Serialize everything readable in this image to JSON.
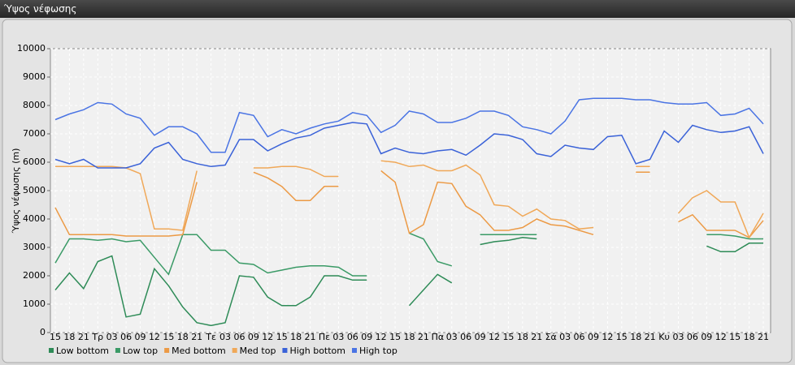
{
  "window_title": "Ύψος νέφωσης",
  "chart_data": {
    "type": "line",
    "y_label": "Ύψος νέφωσης (m)",
    "categories": [
      "15",
      "18",
      "21",
      "Τρ",
      "03",
      "06",
      "09",
      "12",
      "15",
      "18",
      "21",
      "Τε",
      "03",
      "06",
      "09",
      "12",
      "15",
      "18",
      "21",
      "Πε",
      "03",
      "06",
      "09",
      "12",
      "15",
      "18",
      "21",
      "Πα",
      "03",
      "06",
      "09",
      "12",
      "15",
      "18",
      "21",
      "Σά",
      "03",
      "06",
      "09",
      "12",
      "15",
      "18",
      "21",
      "Κυ",
      "03",
      "06",
      "09",
      "12",
      "15",
      "18",
      "21"
    ],
    "ylim": [
      0,
      10000
    ],
    "yticks": [
      0,
      1000,
      2000,
      3000,
      4000,
      5000,
      6000,
      7000,
      8000,
      9000,
      10000
    ],
    "grid": true,
    "series": [
      {
        "name": "Low bottom",
        "color": "#2e8b57",
        "values": [
          1500,
          2100,
          1550,
          2500,
          2700,
          550,
          650,
          2250,
          1650,
          900,
          350,
          250,
          350,
          2000,
          1950,
          1250,
          950,
          950,
          1250,
          2000,
          2000,
          1850,
          1850,
          null,
          null,
          950,
          1500,
          2050,
          1750,
          null,
          3100,
          3200,
          3250,
          3350,
          3300,
          null,
          null,
          null,
          null,
          null,
          null,
          null,
          null,
          null,
          null,
          null,
          3050,
          2850,
          2850,
          3150,
          3150
        ]
      },
      {
        "name": "Low top",
        "color": "#3a9a66",
        "values": [
          2450,
          3300,
          3300,
          3250,
          3300,
          3200,
          3250,
          2650,
          2050,
          3450,
          3450,
          2900,
          2900,
          2450,
          2400,
          2100,
          2200,
          2300,
          2350,
          2350,
          2300,
          2000,
          2000,
          null,
          null,
          3500,
          3300,
          2500,
          2350,
          null,
          3450,
          3450,
          3450,
          3450,
          3450,
          null,
          null,
          null,
          null,
          null,
          null,
          null,
          null,
          null,
          null,
          null,
          3450,
          3450,
          3400,
          3300,
          3300
        ]
      },
      {
        "name": "Med bottom",
        "color": "#ec9a45",
        "values": [
          4400,
          3450,
          3450,
          3450,
          3450,
          3400,
          3400,
          3400,
          3400,
          3450,
          5300,
          null,
          null,
          null,
          5650,
          5450,
          5150,
          4650,
          4650,
          5150,
          5150,
          null,
          null,
          5700,
          5300,
          3500,
          3800,
          5300,
          5250,
          4450,
          4150,
          3600,
          3600,
          3700,
          4000,
          3800,
          3750,
          3600,
          3450,
          null,
          null,
          5650,
          5650,
          null,
          3900,
          4150,
          3600,
          3600,
          3600,
          3350,
          3950
        ]
      },
      {
        "name": "Med top",
        "color": "#f0a858",
        "values": [
          5850,
          5850,
          5850,
          5850,
          5850,
          5800,
          5600,
          3650,
          3650,
          3600,
          5700,
          null,
          null,
          null,
          5800,
          5800,
          5850,
          5850,
          5750,
          5500,
          5500,
          null,
          null,
          6050,
          6000,
          5850,
          5900,
          5700,
          5700,
          5900,
          5550,
          4500,
          4450,
          4100,
          4350,
          4000,
          3950,
          3650,
          3700,
          null,
          null,
          5850,
          5850,
          null,
          4200,
          4750,
          5000,
          4600,
          4600,
          3350,
          4200
        ]
      },
      {
        "name": "High bottom",
        "color": "#3a62d8",
        "values": [
          6100,
          5950,
          6100,
          5800,
          5800,
          5800,
          5950,
          6500,
          6700,
          6100,
          5950,
          5850,
          5900,
          6800,
          6800,
          6400,
          6650,
          6850,
          6950,
          7200,
          7300,
          7400,
          7350,
          6300,
          6500,
          6350,
          6300,
          6400,
          6450,
          6250,
          6600,
          7000,
          6950,
          6800,
          6300,
          6200,
          6600,
          6500,
          6450,
          6900,
          6950,
          5950,
          6100,
          7100,
          6700,
          7300,
          7150,
          7050,
          7100,
          7250,
          6300
        ]
      },
      {
        "name": "High top",
        "color": "#4a74e4",
        "values": [
          7500,
          7700,
          7850,
          8100,
          8050,
          7700,
          7550,
          6950,
          7250,
          7250,
          7000,
          6350,
          6350,
          7750,
          7650,
          6900,
          7150,
          7000,
          7200,
          7350,
          7450,
          7750,
          7650,
          7050,
          7300,
          7800,
          7700,
          7400,
          7400,
          7550,
          7800,
          7800,
          7650,
          7250,
          7150,
          7000,
          7450,
          8200,
          8250,
          8250,
          8250,
          8200,
          8200,
          8100,
          8050,
          8050,
          8100,
          7650,
          7700,
          7900,
          7350
        ]
      }
    ]
  }
}
